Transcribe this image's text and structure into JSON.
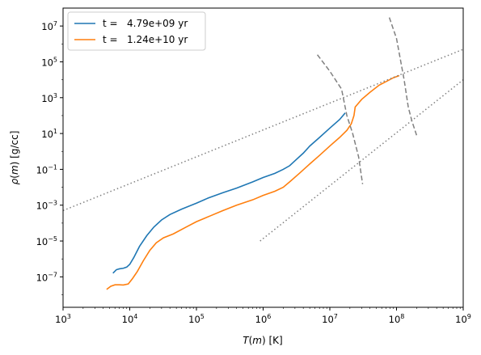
{
  "chart_data": {
    "type": "line",
    "xlabel": "T(m) [K]",
    "ylabel": "ρ(m) [g/cc]",
    "xscale": "log",
    "yscale": "log",
    "xlim": [
      1000,
      1000000000
    ],
    "ylim": [
      2e-09,
      100000000.0
    ],
    "grid": false,
    "legend_position": "top-left",
    "x_ticks": [
      {
        "base": "10",
        "exp": "3",
        "value": 1000.0
      },
      {
        "base": "10",
        "exp": "4",
        "value": 10000.0
      },
      {
        "base": "10",
        "exp": "5",
        "value": 100000.0
      },
      {
        "base": "10",
        "exp": "6",
        "value": 1000000.0
      },
      {
        "base": "10",
        "exp": "7",
        "value": 10000000.0
      },
      {
        "base": "10",
        "exp": "8",
        "value": 100000000.0
      },
      {
        "base": "10",
        "exp": "9",
        "value": 1000000000.0
      }
    ],
    "y_ticks": [
      {
        "base": "10",
        "exp": "−7",
        "value": 1e-07
      },
      {
        "base": "10",
        "exp": "−5",
        "value": 1e-05
      },
      {
        "base": "10",
        "exp": "−3",
        "value": 0.001
      },
      {
        "base": "10",
        "exp": "−1",
        "value": 0.1
      },
      {
        "base": "10",
        "exp": "1",
        "value": 10.0
      },
      {
        "base": "10",
        "exp": "3",
        "value": 1000.0
      },
      {
        "base": "10",
        "exp": "5",
        "value": 100000.0
      },
      {
        "base": "10",
        "exp": "7",
        "value": 10000000.0
      }
    ],
    "series": [
      {
        "name": "t =   4.79e+09 yr",
        "color": "#1f77b4",
        "style": "solid",
        "points": [
          [
            5600,
            1.6e-07
          ],
          [
            6300,
            2.5e-07
          ],
          [
            7000,
            2.8e-07
          ],
          [
            8000,
            3e-07
          ],
          [
            9000,
            3.5e-07
          ],
          [
            10000,
            5e-07
          ],
          [
            11500,
            1.2e-06
          ],
          [
            14000,
            5e-06
          ],
          [
            18000,
            2e-05
          ],
          [
            23000,
            6e-05
          ],
          [
            30000,
            0.00015
          ],
          [
            40000,
            0.0003
          ],
          [
            60000,
            0.0006
          ],
          [
            100000,
            0.0013
          ],
          [
            150000,
            0.0025
          ],
          [
            250000,
            0.005
          ],
          [
            400000,
            0.009
          ],
          [
            700000,
            0.02
          ],
          [
            1000000,
            0.035
          ],
          [
            1500000,
            0.06
          ],
          [
            2000000,
            0.1
          ],
          [
            2500000,
            0.16
          ],
          [
            3000000,
            0.3
          ],
          [
            4000000,
            0.8
          ],
          [
            5000000,
            2
          ],
          [
            7000000,
            6
          ],
          [
            10000000,
            20
          ],
          [
            14000000,
            60
          ],
          [
            17000000,
            140
          ]
        ]
      },
      {
        "name": "t =   1.24e+10 yr",
        "color": "#ff7f0e",
        "style": "solid",
        "points": [
          [
            4500,
            2e-08
          ],
          [
            5200,
            3e-08
          ],
          [
            6000,
            3.6e-08
          ],
          [
            7000,
            3.6e-08
          ],
          [
            8000,
            3.5e-08
          ],
          [
            9500,
            4e-08
          ],
          [
            11000,
            8e-08
          ],
          [
            13000,
            2e-07
          ],
          [
            16000,
            8e-07
          ],
          [
            20000,
            3e-06
          ],
          [
            25000,
            8e-06
          ],
          [
            32000,
            1.5e-05
          ],
          [
            45000,
            2.5e-05
          ],
          [
            70000,
            6e-05
          ],
          [
            100000,
            0.00012
          ],
          [
            160000,
            0.00025
          ],
          [
            250000,
            0.0005
          ],
          [
            400000,
            0.001
          ],
          [
            700000,
            0.002
          ],
          [
            1000000,
            0.0035
          ],
          [
            1500000,
            0.006
          ],
          [
            2000000,
            0.01
          ],
          [
            2500000,
            0.02
          ],
          [
            3500000,
            0.06
          ],
          [
            5000000,
            0.2
          ],
          [
            7000000,
            0.6
          ],
          [
            10000000,
            2
          ],
          [
            14000000,
            6
          ],
          [
            18000000,
            15
          ],
          [
            21000000,
            35
          ],
          [
            23000000,
            100
          ],
          [
            24000000,
            300
          ],
          [
            30000000,
            800
          ],
          [
            40000000,
            2000
          ],
          [
            55000000,
            5000
          ],
          [
            70000000,
            8000
          ],
          [
            90000000,
            13000
          ],
          [
            110000000,
            17000
          ]
        ]
      },
      {
        "name": "",
        "color": "#808080",
        "style": "dashed",
        "points": [
          [
            6500000,
            250000
          ],
          [
            10000000,
            30000
          ],
          [
            15000000,
            3000
          ],
          [
            18000000,
            100
          ],
          [
            22000000,
            10
          ],
          [
            27000000,
            0.5
          ],
          [
            31000000,
            0.015
          ]
        ]
      },
      {
        "name": "",
        "color": "#808080",
        "style": "dashed",
        "points": [
          [
            78000000,
            30000000
          ],
          [
            100000000,
            2000000
          ],
          [
            130000000,
            10000
          ],
          [
            150000000,
            300
          ],
          [
            170000000,
            50
          ],
          [
            200000000,
            8
          ]
        ]
      },
      {
        "name": "",
        "color": "#808080",
        "style": "dotted",
        "points": [
          [
            1000,
            0.0005
          ],
          [
            1000000000,
            500000.0
          ]
        ]
      },
      {
        "name": "",
        "color": "#808080",
        "style": "dotted",
        "points": [
          [
            900000,
            1e-05
          ],
          [
            1000000000,
            10000.0
          ]
        ]
      }
    ]
  }
}
